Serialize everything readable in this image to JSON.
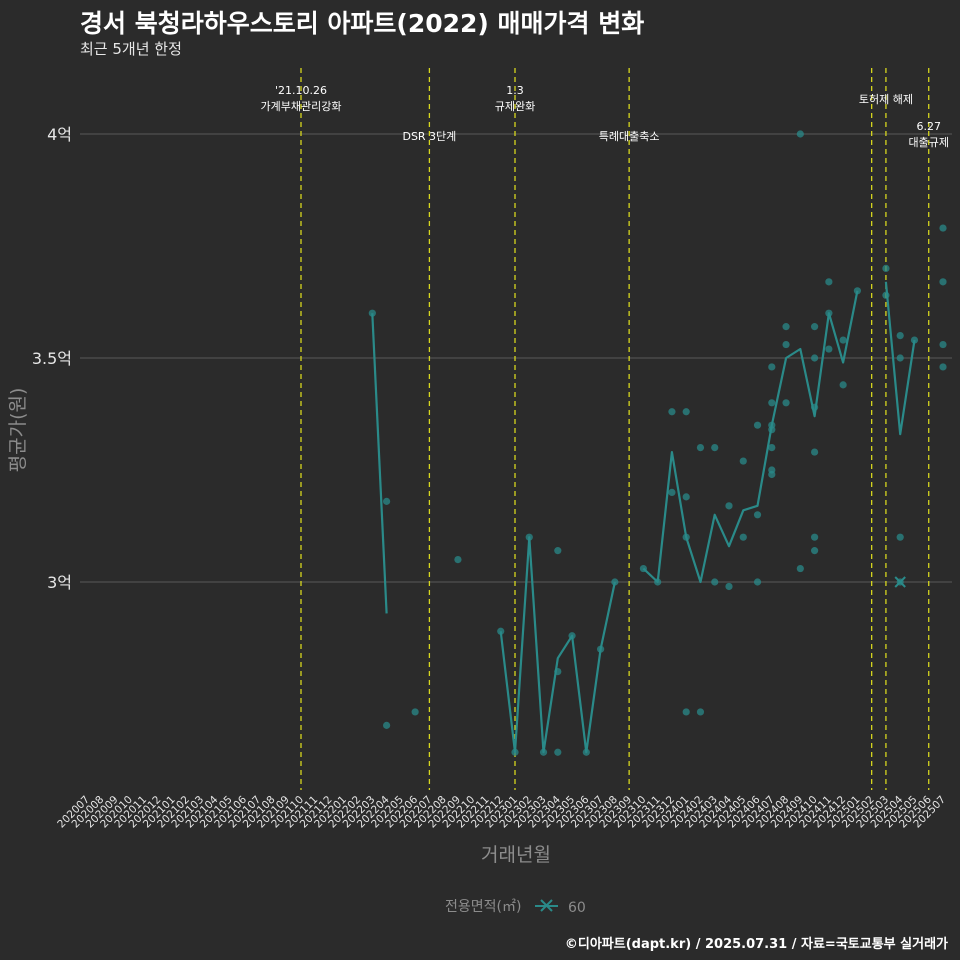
{
  "title": "경서 북청라하우스토리 아파트(2022) 매매가격 변화",
  "subtitle": "최근 5개년 한정",
  "caption": "©디아파트(dapt.kr) / 2025.07.31 / 자료=국토교통부 실거래가",
  "colors": {
    "background": "#2b2b2b",
    "series": "#2a8a89",
    "grid": "#5a5a5a",
    "event_line": "#d6d61e",
    "axis_text": "#e6e6e6",
    "axis_title": "#8c8c8c"
  },
  "chart_data": {
    "type": "line",
    "xlabel": "거래년월",
    "ylabel": "평균가(원)",
    "categories": [
      "202007",
      "202008",
      "202009",
      "202010",
      "202011",
      "202012",
      "202101",
      "202102",
      "202103",
      "202104",
      "202105",
      "202106",
      "202107",
      "202108",
      "202109",
      "202110",
      "202111",
      "202112",
      "202201",
      "202202",
      "202203",
      "202204",
      "202205",
      "202206",
      "202207",
      "202208",
      "202209",
      "202210",
      "202211",
      "202212",
      "202301",
      "202302",
      "202303",
      "202304",
      "202305",
      "202306",
      "202307",
      "202308",
      "202309",
      "202310",
      "202311",
      "202312",
      "202401",
      "202402",
      "202403",
      "202404",
      "202405",
      "202406",
      "202407",
      "202408",
      "202409",
      "202410",
      "202411",
      "202412",
      "202501",
      "202502",
      "202503",
      "202504",
      "202505",
      "202506",
      "202507"
    ],
    "yticks": [
      {
        "value": 3.0,
        "label": "3억"
      },
      {
        "value": 3.5,
        "label": "3.5억"
      },
      {
        "value": 4.0,
        "label": "4억"
      }
    ],
    "ylim": [
      2.55,
      4.15
    ],
    "legend": {
      "title": "전용면적(㎡)",
      "entries": [
        "60"
      ],
      "position": "bottom"
    },
    "series": [
      {
        "name": "60",
        "line": [
          {
            "x": "202203",
            "y": 3.6
          },
          {
            "x": "202204",
            "y": 2.93
          },
          {
            "x": "202212",
            "y": 2.89
          },
          {
            "x": "202301",
            "y": 2.62
          },
          {
            "x": "202302",
            "y": 3.1
          },
          {
            "x": "202303",
            "y": 2.62
          },
          {
            "x": "202304",
            "y": 2.83
          },
          {
            "x": "202305",
            "y": 2.88
          },
          {
            "x": "202306",
            "y": 2.62
          },
          {
            "x": "202307",
            "y": 2.85
          },
          {
            "x": "202308",
            "y": 3.0
          },
          {
            "x": "202310",
            "y": 3.03
          },
          {
            "x": "202311",
            "y": 3.0
          },
          {
            "x": "202312",
            "y": 3.29
          },
          {
            "x": "202401",
            "y": 3.1
          },
          {
            "x": "202402",
            "y": 3.0
          },
          {
            "x": "202403",
            "y": 3.15
          },
          {
            "x": "202404",
            "y": 3.08
          },
          {
            "x": "202405",
            "y": 3.16
          },
          {
            "x": "202406",
            "y": 3.17
          },
          {
            "x": "202407",
            "y": 3.35
          },
          {
            "x": "202408",
            "y": 3.5
          },
          {
            "x": "202409",
            "y": 3.52
          },
          {
            "x": "202410",
            "y": 3.37
          },
          {
            "x": "202411",
            "y": 3.6
          },
          {
            "x": "202412",
            "y": 3.49
          },
          {
            "x": "202501",
            "y": 3.65
          },
          {
            "x": "202503",
            "y": 3.67
          },
          {
            "x": "202504",
            "y": 3.33
          },
          {
            "x": "202505",
            "y": 3.54
          }
        ],
        "points": [
          {
            "x": "202203",
            "y": 3.6
          },
          {
            "x": "202204",
            "y": 3.18
          },
          {
            "x": "202204",
            "y": 2.68
          },
          {
            "x": "202206",
            "y": 2.71
          },
          {
            "x": "202209",
            "y": 3.05
          },
          {
            "x": "202212",
            "y": 2.89
          },
          {
            "x": "202301",
            "y": 2.62
          },
          {
            "x": "202302",
            "y": 3.1
          },
          {
            "x": "202303",
            "y": 2.62
          },
          {
            "x": "202304",
            "y": 3.07
          },
          {
            "x": "202304",
            "y": 2.8
          },
          {
            "x": "202304",
            "y": 2.62
          },
          {
            "x": "202305",
            "y": 2.88
          },
          {
            "x": "202306",
            "y": 2.62
          },
          {
            "x": "202307",
            "y": 2.85
          },
          {
            "x": "202308",
            "y": 3.0
          },
          {
            "x": "202310",
            "y": 3.03
          },
          {
            "x": "202311",
            "y": 3.0
          },
          {
            "x": "202312",
            "y": 3.38
          },
          {
            "x": "202312",
            "y": 3.2
          },
          {
            "x": "202401",
            "y": 3.38
          },
          {
            "x": "202401",
            "y": 3.19
          },
          {
            "x": "202401",
            "y": 3.1
          },
          {
            "x": "202401",
            "y": 2.71
          },
          {
            "x": "202402",
            "y": 3.3
          },
          {
            "x": "202402",
            "y": 2.71
          },
          {
            "x": "202403",
            "y": 3.3
          },
          {
            "x": "202403",
            "y": 3.0
          },
          {
            "x": "202404",
            "y": 3.17
          },
          {
            "x": "202404",
            "y": 2.99
          },
          {
            "x": "202405",
            "y": 3.27
          },
          {
            "x": "202405",
            "y": 3.1
          },
          {
            "x": "202406",
            "y": 3.35
          },
          {
            "x": "202406",
            "y": 3.15
          },
          {
            "x": "202406",
            "y": 3.0
          },
          {
            "x": "202407",
            "y": 3.48
          },
          {
            "x": "202407",
            "y": 3.4
          },
          {
            "x": "202407",
            "y": 3.35
          },
          {
            "x": "202407",
            "y": 3.34
          },
          {
            "x": "202407",
            "y": 3.3
          },
          {
            "x": "202407",
            "y": 3.25
          },
          {
            "x": "202407",
            "y": 3.24
          },
          {
            "x": "202408",
            "y": 3.57
          },
          {
            "x": "202408",
            "y": 3.53
          },
          {
            "x": "202408",
            "y": 3.4
          },
          {
            "x": "202409",
            "y": 4.0
          },
          {
            "x": "202409",
            "y": 3.03
          },
          {
            "x": "202410",
            "y": 3.57
          },
          {
            "x": "202410",
            "y": 3.5
          },
          {
            "x": "202410",
            "y": 3.39
          },
          {
            "x": "202410",
            "y": 3.29
          },
          {
            "x": "202410",
            "y": 3.1
          },
          {
            "x": "202410",
            "y": 3.07
          },
          {
            "x": "202411",
            "y": 3.67
          },
          {
            "x": "202411",
            "y": 3.6
          },
          {
            "x": "202411",
            "y": 3.52
          },
          {
            "x": "202412",
            "y": 3.54
          },
          {
            "x": "202412",
            "y": 3.44
          },
          {
            "x": "202501",
            "y": 3.65
          },
          {
            "x": "202503",
            "y": 3.7
          },
          {
            "x": "202503",
            "y": 3.64
          },
          {
            "x": "202504",
            "y": 3.55
          },
          {
            "x": "202504",
            "y": 3.5
          },
          {
            "x": "202504",
            "y": 3.1
          },
          {
            "x": "202504",
            "y": 3.0
          },
          {
            "x": "202505",
            "y": 3.54
          },
          {
            "x": "202507",
            "y": 3.79
          },
          {
            "x": "202507",
            "y": 3.67
          },
          {
            "x": "202507",
            "y": 3.53
          },
          {
            "x": "202507",
            "y": 3.48
          }
        ],
        "cross_marks": [
          {
            "x": "202504",
            "y": 3.0
          }
        ]
      }
    ],
    "events": [
      {
        "x": "202110",
        "label_lines": [
          "'21.10.26",
          "가계부채관리강화"
        ],
        "row": "high"
      },
      {
        "x": "202207",
        "label_lines": [
          "DSR 3단계"
        ],
        "row": "low"
      },
      {
        "x": "202301",
        "label_lines": [
          "1.3",
          "규제완화"
        ],
        "row": "high"
      },
      {
        "x": "202309",
        "label_lines": [
          "특례대출축소"
        ],
        "row": "low"
      },
      {
        "x": "202502",
        "label_lines": [],
        "row": "none"
      },
      {
        "x": "202503",
        "label_lines": [
          "토허제 해제"
        ],
        "row": "mid"
      },
      {
        "x": "202506",
        "label_lines": [
          "6.27",
          "대출규제"
        ],
        "row": "lowpair"
      }
    ]
  }
}
